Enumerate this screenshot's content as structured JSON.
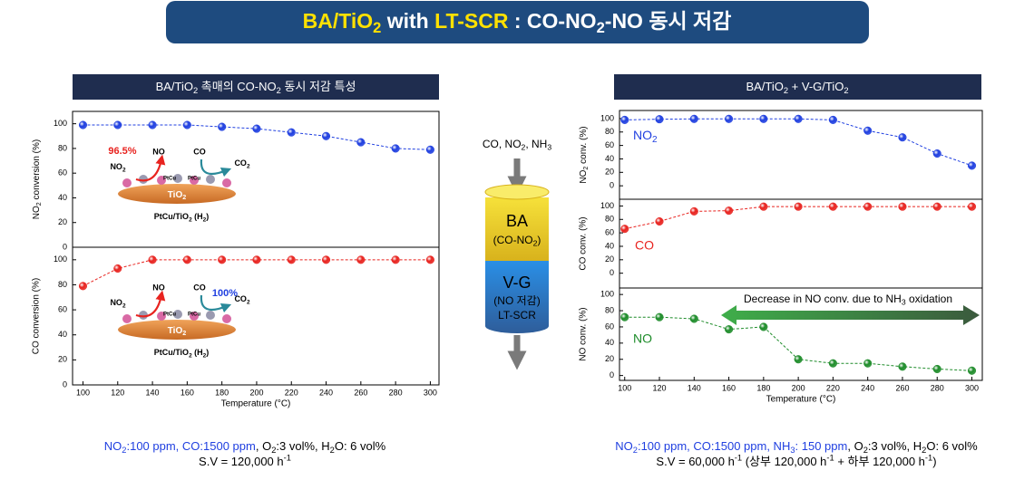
{
  "header": {
    "title": [
      "BA/TiO",
      "2",
      " with ",
      "LT-SCR",
      " : CO-NO",
      "2",
      "-NO 동시 저감"
    ]
  },
  "panels": {
    "left": [
      "BA/TiO",
      "2",
      " 촉매의 CO-NO",
      "2",
      " 동시 저감 특성"
    ],
    "right": [
      "BA/TiO",
      "2",
      " + V-G/TiO",
      "2"
    ]
  },
  "insets": [
    {
      "rate": "96.5%",
      "product_1": "NO",
      "reactant_2": "CO",
      "reactant_1": [
        "NO",
        "2"
      ],
      "product_2": [
        "CO",
        "2"
      ],
      "site_1": "PtCu",
      "site_2": "PtCu",
      "support": [
        "TiO",
        "2"
      ],
      "catalyst": [
        "PtCu/TiO",
        "2",
        " (H",
        "2",
        ")"
      ]
    },
    {
      "product_1": "NO",
      "reactant_2": "CO",
      "rate": "100%",
      "reactant_1": [
        "NO",
        "2"
      ],
      "product_2": [
        "CO",
        "2"
      ],
      "site_1": "PtCu",
      "site_2": "PtCu",
      "support": [
        "TiO",
        "2"
      ],
      "catalyst": [
        "PtCu/TiO",
        "2",
        " (H",
        "2",
        ")"
      ]
    }
  ],
  "reactor": {
    "feed": [
      "CO, NO",
      "2",
      ", NH",
      "3"
    ],
    "upper": "BA",
    "upper_role": [
      "(CO-NO",
      "2",
      ")"
    ],
    "lower": "V-G",
    "lower_role": "(NO 저감)",
    "lower_type": "LT-SCR"
  },
  "chart_data": [
    {
      "type": "line",
      "y_label": [
        "NO",
        "2",
        " conversion (%)"
      ],
      "x": [
        100,
        120,
        140,
        160,
        180,
        200,
        220,
        240,
        260,
        280,
        300
      ],
      "xlim": [
        94,
        305
      ],
      "ylim": [
        0,
        110
      ],
      "yticks": [
        0,
        20,
        40,
        60,
        80,
        100
      ],
      "series": [
        {
          "color": "#1f3fe0",
          "values": [
            99,
            99,
            99,
            99,
            97.5,
            96,
            93,
            90,
            85,
            80,
            79
          ]
        }
      ]
    },
    {
      "type": "line",
      "y_label": "CO conversion (%)",
      "x_label": "Temperature (°C)",
      "x": [
        100,
        120,
        140,
        160,
        180,
        200,
        220,
        240,
        260,
        280,
        300
      ],
      "xlim": [
        94,
        305
      ],
      "xticks": [
        100,
        120,
        140,
        160,
        180,
        200,
        220,
        240,
        260,
        280,
        300
      ],
      "ylim": [
        0,
        110
      ],
      "yticks": [
        0,
        20,
        40,
        60,
        80,
        100
      ],
      "series": [
        {
          "color": "#e8231f",
          "values": [
            79,
            93,
            100,
            100,
            100,
            100,
            100,
            100,
            100,
            100,
            100
          ]
        }
      ]
    },
    {
      "type": "line",
      "y_label": [
        "NO",
        "2",
        " conv. (%)"
      ],
      "x": [
        100,
        120,
        140,
        160,
        180,
        200,
        220,
        240,
        260,
        280,
        300
      ],
      "xlim": [
        97,
        306
      ],
      "ylim": [
        -20,
        112
      ],
      "yticks": [
        0,
        20,
        40,
        60,
        80,
        100
      ],
      "series": [
        {
          "name": [
            "NO",
            "2"
          ],
          "color": "#1f3fe0",
          "values": [
            98,
            99,
            99.5,
            99.5,
            99.5,
            99.5,
            98,
            82,
            72,
            48,
            30
          ]
        }
      ]
    },
    {
      "type": "line",
      "y_label": "CO conv. (%)",
      "x": [
        100,
        120,
        140,
        160,
        180,
        200,
        220,
        240,
        260,
        280,
        300
      ],
      "xlim": [
        97,
        306
      ],
      "ylim": [
        -22,
        110
      ],
      "yticks": [
        0,
        20,
        40,
        60,
        80,
        100
      ],
      "series": [
        {
          "name": "CO",
          "color": "#e8231f",
          "values": [
            66,
            77,
            92,
            93,
            99,
            99,
            99,
            99,
            99,
            99,
            99
          ]
        }
      ]
    },
    {
      "type": "line",
      "y_label": "NO conv. (%)",
      "x_label": "Temperature (°C)",
      "annotation": [
        "Decrease in NO conv. due to NH",
        "3",
        " oxidation"
      ],
      "x": [
        100,
        120,
        140,
        160,
        180,
        200,
        220,
        240,
        260,
        280,
        300
      ],
      "xlim": [
        97,
        306
      ],
      "xticks": [
        100,
        120,
        140,
        160,
        180,
        200,
        220,
        240,
        260,
        280,
        300
      ],
      "ylim": [
        -6,
        108
      ],
      "yticks": [
        0,
        20,
        40,
        60,
        80,
        100
      ],
      "series": [
        {
          "name": "NO",
          "color": "#1e8c2a",
          "values": [
            72,
            72,
            70,
            57,
            60,
            20,
            15,
            15,
            11,
            8,
            6
          ]
        }
      ]
    }
  ],
  "footer": {
    "left": {
      "conditions": [
        "NO",
        "2",
        ":100 ppm, CO:1500 ppm",
        ", O",
        "2",
        ":3 vol%, H",
        "2",
        "O: 6 vol%"
      ],
      "space_velocity": [
        "S.V = 120,000 h",
        "-1"
      ]
    },
    "right": {
      "conditions": [
        "NO",
        "2",
        ":100 ppm, CO:1500 ppm, NH",
        "3",
        ": 150 ppm",
        ", O",
        "2",
        ":3 vol%, H",
        "2",
        "O: 6 vol%"
      ],
      "space_velocity": [
        "S.V = 60,000 h",
        "-1",
        " (상부 120,000 h",
        "-1",
        " + 하부 120,000 h",
        "-1",
        ")"
      ]
    }
  }
}
